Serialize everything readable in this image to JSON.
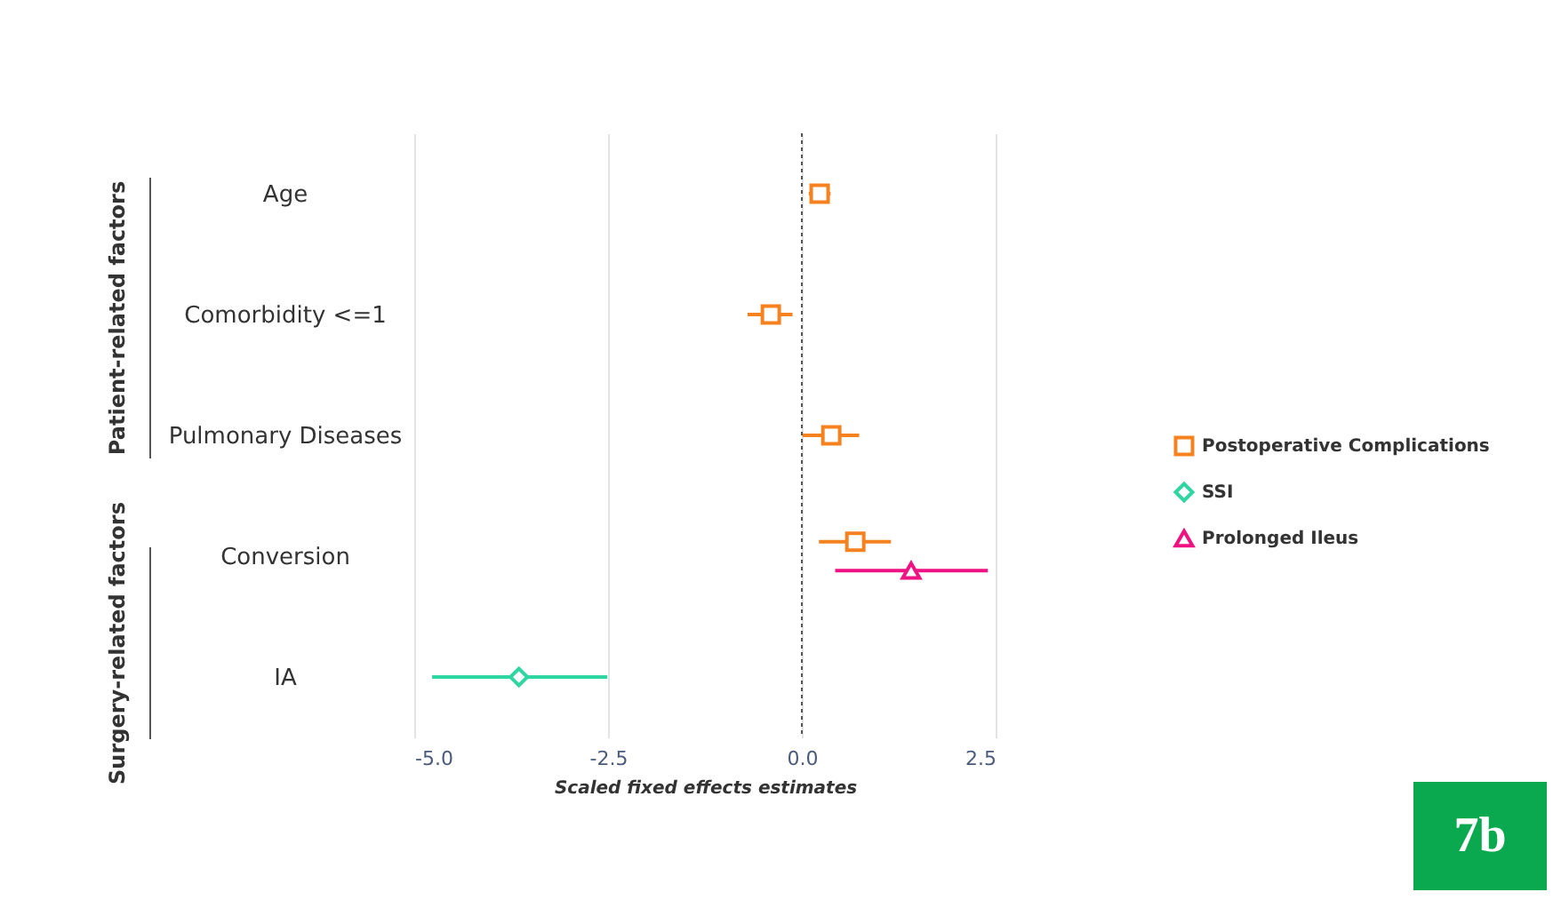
{
  "chart_data": {
    "type": "scatter",
    "orientation": "horizontal",
    "xlabel": "Scaled fixed effects estimates",
    "categories": [
      "Age",
      "Comorbidity <=1",
      "Pulmonary Diseases",
      "Conversion",
      "IA"
    ],
    "series": [
      {
        "name": "Postoperative Complications",
        "color": "#f5821f",
        "marker": "square",
        "values": [
          0.23,
          -0.4,
          0.38,
          0.69,
          null
        ],
        "errors": [
          [
            0.09,
            0.37
          ],
          [
            -0.7,
            -0.12
          ],
          [
            0.01,
            0.74
          ],
          [
            0.22,
            1.15
          ],
          null
        ]
      },
      {
        "name": "SSI",
        "color": "#2fd6a0",
        "marker": "diamond",
        "values": [
          null,
          null,
          null,
          null,
          -3.65
        ],
        "errors": [
          null,
          null,
          null,
          null,
          [
            -4.77,
            -2.51
          ]
        ]
      },
      {
        "name": "Prolonged Ileus",
        "color": "#ee1282",
        "marker": "triangle",
        "values": [
          null,
          null,
          null,
          1.41,
          null
        ],
        "errors": [
          null,
          null,
          null,
          [
            0.43,
            2.4
          ],
          null
        ]
      }
    ],
    "xlim": [
      -5,
      2.5
    ],
    "xticks": [
      {
        "value": -5,
        "label": "-5.0"
      },
      {
        "value": -2.5,
        "label": "-2.5"
      },
      {
        "value": 0,
        "label": "0.0"
      },
      {
        "value": 2.5,
        "label": "2.5"
      }
    ],
    "grid": "x",
    "legend": "right",
    "ref_lines": [
      {
        "axis": "x",
        "value": 0,
        "line_style": "dotted",
        "color": "#555555"
      }
    ],
    "annotations": [
      "Patient-related factors",
      "Surgery-related factors",
      "7b"
    ]
  }
}
